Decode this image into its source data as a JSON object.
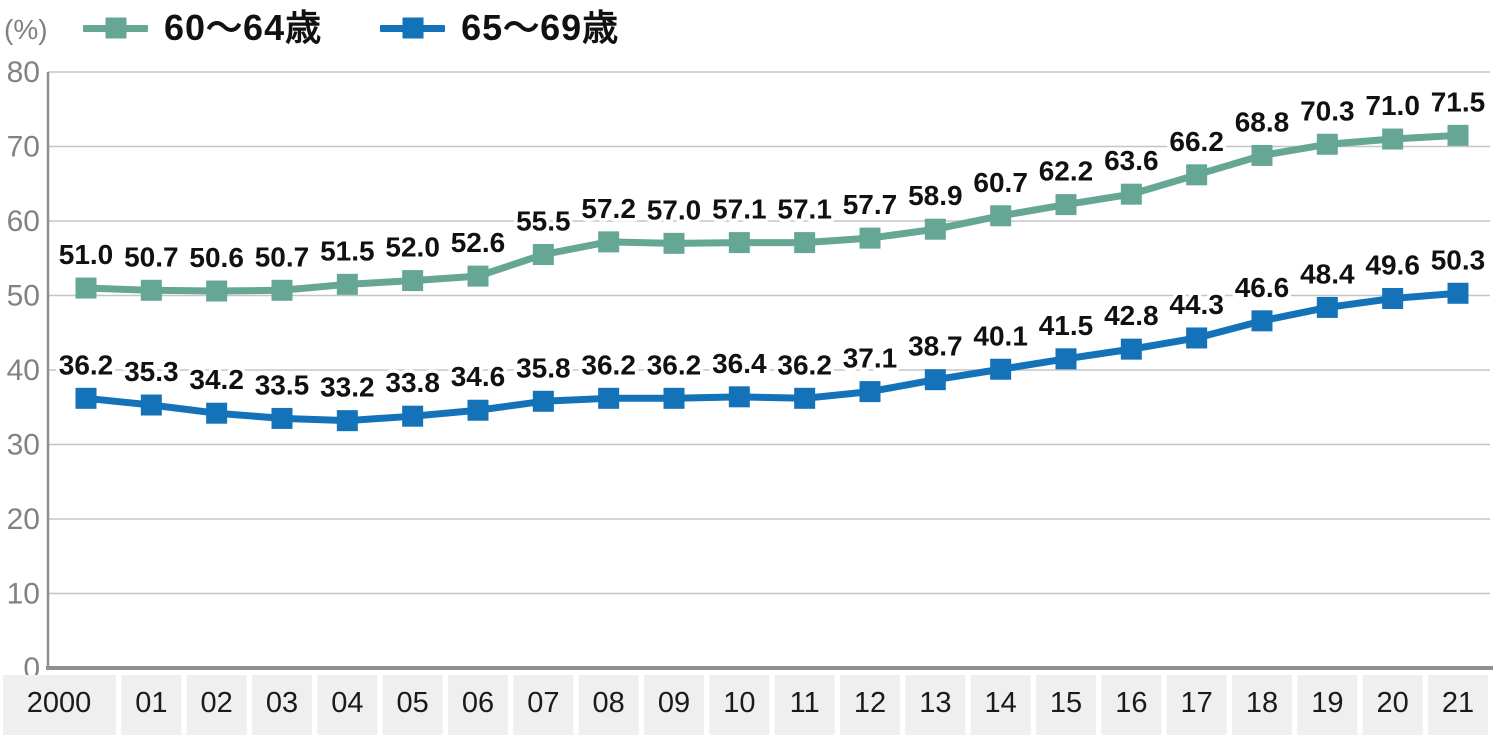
{
  "chart_data": {
    "type": "line",
    "unit_label": "(%)",
    "categories": [
      "2000",
      "01",
      "02",
      "03",
      "04",
      "05",
      "06",
      "07",
      "08",
      "09",
      "10",
      "11",
      "12",
      "13",
      "14",
      "15",
      "16",
      "17",
      "18",
      "19",
      "20",
      "21"
    ],
    "series": [
      {
        "name": "60〜64歳",
        "color": "#65a695",
        "values": [
          51.0,
          50.7,
          50.6,
          50.7,
          51.5,
          52.0,
          52.6,
          55.5,
          57.2,
          57.0,
          57.1,
          57.1,
          57.7,
          58.9,
          60.7,
          62.2,
          63.6,
          66.2,
          68.8,
          70.3,
          71.0,
          71.5
        ]
      },
      {
        "name": "65〜69歳",
        "color": "#1472b9",
        "values": [
          36.2,
          35.3,
          34.2,
          33.5,
          33.2,
          33.8,
          34.6,
          35.8,
          36.2,
          36.2,
          36.4,
          36.2,
          37.1,
          38.7,
          40.1,
          41.5,
          42.8,
          44.3,
          46.6,
          48.4,
          49.6,
          50.3
        ]
      }
    ],
    "ylim": [
      0,
      80
    ],
    "y_ticks": [
      "0",
      "10",
      "20",
      "30",
      "40",
      "50",
      "60",
      "70",
      "80"
    ],
    "grid": "horizontal-solid",
    "legend_position": "top-left",
    "value_labels": "above-points",
    "marker": "square",
    "styling": {
      "grid_color": "#c5c5c5",
      "axis_color": "#8f8f8f",
      "y_tick_color": "#828282",
      "x_tick_color": "#1a1a1a",
      "x_tick_bg": "#efefef",
      "value_label_color": "#111111"
    }
  }
}
